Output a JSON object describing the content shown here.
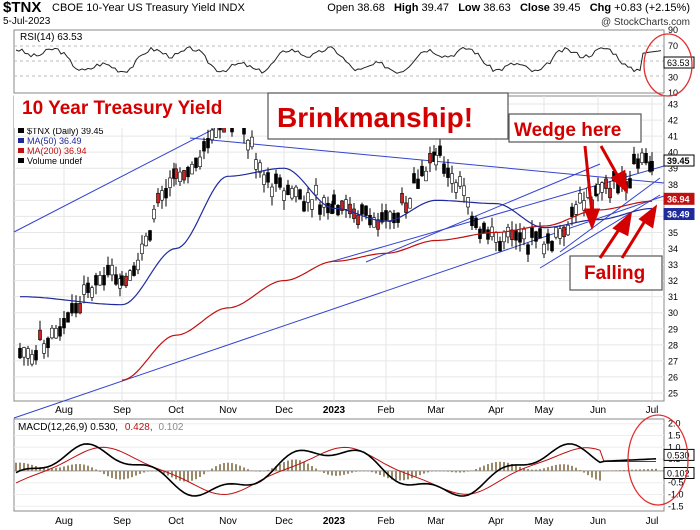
{
  "header": {
    "symbol": "$TNX",
    "description": "CBOE 10-Year US Treasury Yield  INDX",
    "date": "5-Jul-2023",
    "open_label": "Open",
    "open": "38.68",
    "high_label": "High",
    "high": "39.47",
    "low_label": "Low",
    "low": "38.63",
    "close_label": "Close",
    "close": "39.45",
    "chg_label": "Chg",
    "chg": "+0.83 (+2.15%)",
    "watermark": "@ StockCharts.com"
  },
  "rsi": {
    "label": "RSI(14) 63.53",
    "value_tag": "63.53",
    "ticks": [
      "90",
      "70",
      "50",
      "30",
      "10"
    ]
  },
  "price_panel": {
    "legend": [
      "$TNX (Daily) 39.45",
      "MA(50) 36.49",
      "MA(200) 36.94",
      "Volume undef"
    ],
    "ticks": [
      "43",
      "42",
      "41",
      "40",
      "39",
      "38",
      "37",
      "36",
      "35",
      "34",
      "33",
      "32",
      "31",
      "30",
      "29",
      "28",
      "27",
      "26",
      "25"
    ],
    "last_tags": [
      "39.45",
      "36.94",
      "36.49"
    ],
    "x_labels": [
      "Aug",
      "Sep",
      "Oct",
      "Nov",
      "Dec",
      "2023",
      "Feb",
      "Mar",
      "Apr",
      "May",
      "Jun",
      "Jul"
    ]
  },
  "annotations": {
    "title": "10 Year Treasury Yield",
    "headline": "Brinkmanship!",
    "wedge": "Wedge here",
    "falling": "Falling"
  },
  "macd": {
    "label_a": "MACD(12,26,9) 0.530,",
    "label_b": "0.428,",
    "label_c": "0.102",
    "ticks": [
      "2.0",
      "1.5",
      "1.0",
      "0.5",
      "0.0",
      "-0.5",
      "-1.0",
      "-1.5"
    ],
    "tags": [
      "0.530",
      "0.102"
    ]
  },
  "colors": {
    "price": "#000000",
    "ma50": "#1f2a9c",
    "ma200": "#c01010",
    "trend": "#3344cc",
    "annotation": "#d40000",
    "circle": "#e03030"
  },
  "chart_data": {
    "type": "line",
    "title": "10 Year Treasury Yield",
    "x": [
      "Aug",
      "Sep",
      "Oct",
      "Nov",
      "Dec",
      "2023",
      "Feb",
      "Mar",
      "Apr",
      "May",
      "Jun",
      "Jul"
    ],
    "series": [
      {
        "name": "$TNX (Daily) 39.45",
        "values": [
          27.5,
          32.5,
          38.0,
          42.0,
          37.5,
          37.0,
          35.5,
          39.5,
          34.5,
          34.5,
          37.5,
          39.45
        ]
      },
      {
        "name": "MA(50) 36.49",
        "values": [
          31.0,
          30.5,
          34.0,
          38.5,
          39.0,
          36.5,
          35.7,
          37.0,
          36.8,
          35.3,
          35.8,
          36.49
        ]
      },
      {
        "name": "MA(200) 36.94",
        "values": [
          23.0,
          25.8,
          28.6,
          30.3,
          32.0,
          33.2,
          33.7,
          34.5,
          35.0,
          35.4,
          36.4,
          36.94
        ]
      }
    ],
    "ylim": [
      24.5,
      43.5
    ],
    "rsi": {
      "value": 63.53,
      "ylim": [
        10,
        90
      ]
    },
    "macd": {
      "macd": 0.53,
      "signal": 0.428,
      "histogram": 0.102,
      "ylim": [
        -1.7,
        2.2
      ]
    }
  }
}
